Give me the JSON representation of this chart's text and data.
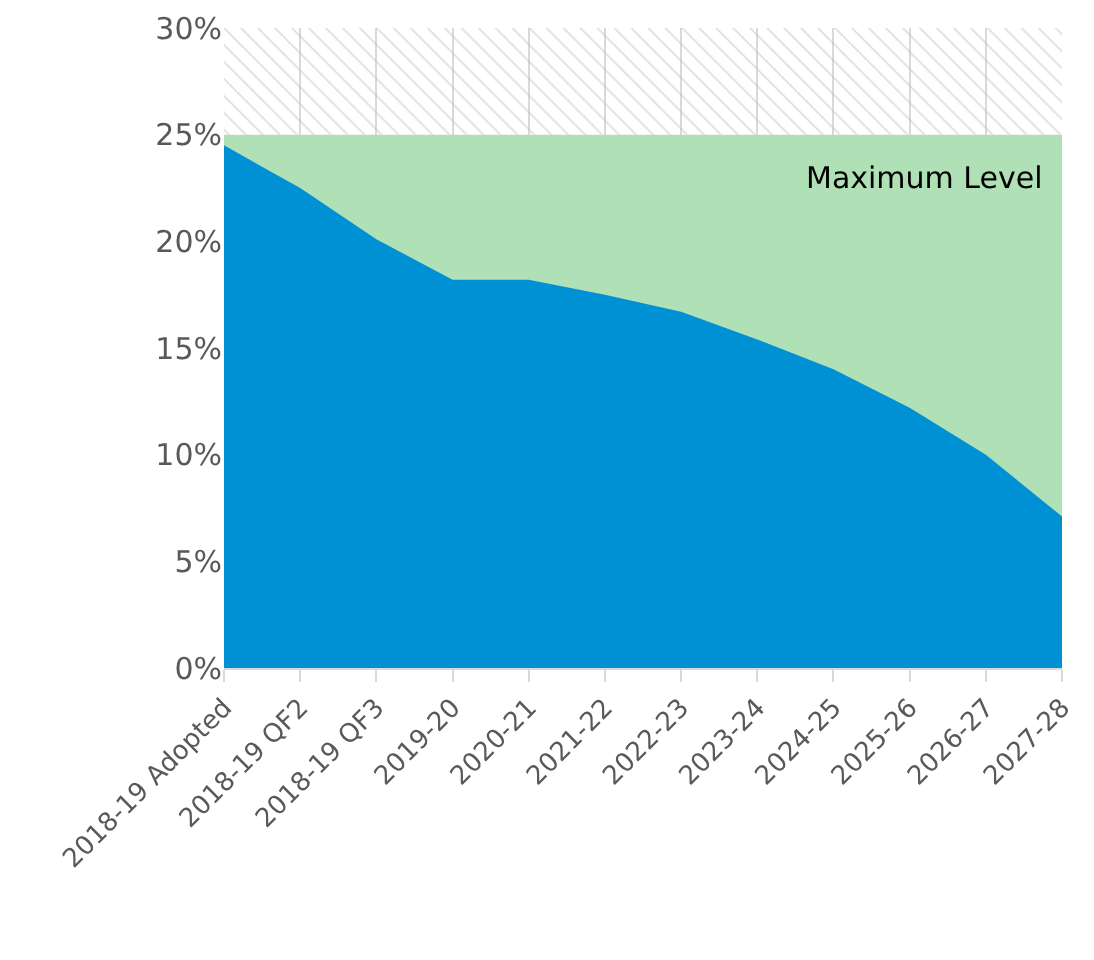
{
  "chart_data": {
    "type": "area",
    "categories": [
      "2018-19 Adopted",
      "2018-19 QF2",
      "2018-19 QF3",
      "2019-20",
      "2020-21",
      "2021-22",
      "2022-23",
      "2023-24",
      "2024-25",
      "2025-26",
      "2026-27",
      "2027-28"
    ],
    "series": [
      {
        "name": "Maximum Level",
        "color": "#b0e0b6",
        "values": [
          25,
          25,
          25,
          25,
          25,
          25,
          25,
          25,
          25,
          25,
          25,
          25
        ]
      },
      {
        "color": "#0091d5",
        "values": [
          24.5,
          22.5,
          20.1,
          18.2,
          18.2,
          17.5,
          16.7,
          15.4,
          14.0,
          12.2,
          10.0,
          7.1
        ]
      }
    ],
    "bands": [
      {
        "axis": "y",
        "from": 25,
        "to": 30,
        "color": "#bfbfbf"
      }
    ],
    "ylim": [
      0,
      30
    ],
    "yticks": [
      {
        "value": 0,
        "label": "0%"
      },
      {
        "value": 5,
        "label": "5%"
      },
      {
        "value": 10,
        "label": "10%"
      },
      {
        "value": 15,
        "label": "15%"
      },
      {
        "value": 20,
        "label": "20%"
      },
      {
        "value": 25,
        "label": "25%"
      },
      {
        "value": 30,
        "label": "30%"
      }
    ],
    "grid": "x",
    "legend": false
  }
}
